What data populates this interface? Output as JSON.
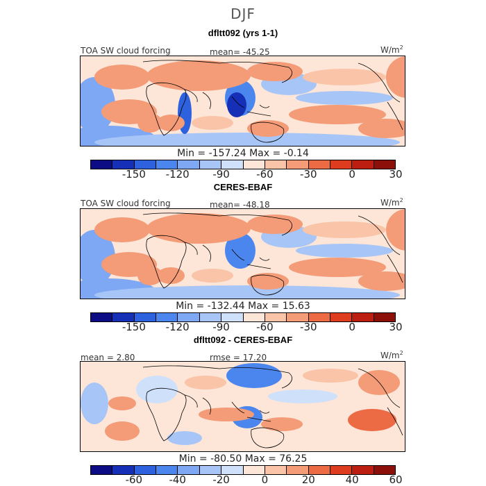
{
  "season": "DJF",
  "colors": [
    "#0c0c85",
    "#1530b6",
    "#2d61dd",
    "#4b86ee",
    "#7ea8f3",
    "#a7c6f7",
    "#cfe0fa",
    "#fde6d8",
    "#f9c4a8",
    "#f49b77",
    "#ec6b45",
    "#dd3c1e",
    "#bd1e12",
    "#8c0f0a"
  ],
  "panels": [
    {
      "title": "dfltt092 (yrs 1-1)",
      "left_label": "TOA SW cloud forcing",
      "center_label": "mean= -45.25",
      "units": "W/m",
      "units_exp": "2",
      "minmax": "Min = -157.24  Max =  -0.14",
      "ticks": [
        "-150",
        "-120",
        "-90",
        "-60",
        "-30",
        "0",
        "30"
      ]
    },
    {
      "title": "CERES-EBAF",
      "left_label": "TOA SW cloud forcing",
      "center_label": "mean= -48.18",
      "units": "W/m",
      "units_exp": "2",
      "minmax": "Min = -132.44  Max =  15.63",
      "ticks": [
        "-150",
        "-120",
        "-90",
        "-60",
        "-30",
        "0",
        "30"
      ]
    },
    {
      "title": "dfltt092 - CERES-EBAF",
      "left_label": "mean =  2.80",
      "center_label": "rmse =  17.20",
      "units": "W/m",
      "units_exp": "2",
      "minmax": "Min = -80.50  Max =  76.25",
      "ticks": [
        "-60",
        "-40",
        "-20",
        "0",
        "20",
        "40",
        "60"
      ]
    }
  ],
  "chart_data": [
    {
      "type": "heatmap",
      "title": "dfltt092 (yrs 1-1)",
      "variable": "TOA SW cloud forcing",
      "units": "W/m2",
      "mean": -45.25,
      "min": -157.24,
      "max": -0.14,
      "colorbar_levels": [
        -150,
        -135,
        -120,
        -105,
        -90,
        -75,
        -60,
        -45,
        -30,
        -15,
        0,
        15,
        30
      ],
      "colorbar_ticks": [
        -150,
        -120,
        -90,
        -60,
        -30,
        0,
        30
      ]
    },
    {
      "type": "heatmap",
      "title": "CERES-EBAF",
      "variable": "TOA SW cloud forcing",
      "units": "W/m2",
      "mean": -48.18,
      "min": -132.44,
      "max": 15.63,
      "colorbar_levels": [
        -150,
        -135,
        -120,
        -105,
        -90,
        -75,
        -60,
        -45,
        -30,
        -15,
        0,
        15,
        30
      ],
      "colorbar_ticks": [
        -150,
        -120,
        -90,
        -60,
        -30,
        0,
        30
      ]
    },
    {
      "type": "heatmap",
      "title": "dfltt092 - CERES-EBAF",
      "units": "W/m2",
      "mean": 2.8,
      "rmse": 17.2,
      "min": -80.5,
      "max": 76.25,
      "colorbar_levels": [
        -70,
        -60,
        -50,
        -40,
        -30,
        -20,
        -10,
        0,
        10,
        20,
        30,
        40,
        50,
        60,
        70
      ],
      "colorbar_ticks": [
        -60,
        -40,
        -20,
        0,
        20,
        40,
        60
      ]
    }
  ]
}
